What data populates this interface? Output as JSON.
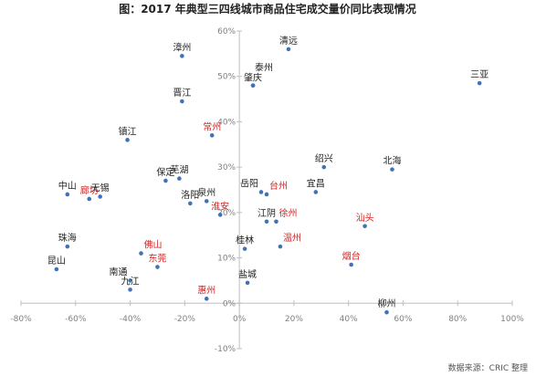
{
  "chart_data": {
    "type": "scatter",
    "title": "图：2017 年典型三四线城市商品住宅成交量价同比表现情况",
    "source": "数据来源：CRIC 整理",
    "xlabel": "",
    "ylabel": "",
    "xlim": [
      -80,
      100
    ],
    "ylim": [
      -10,
      60
    ],
    "x_ticks": [
      -80,
      -60,
      -40,
      -20,
      0,
      20,
      40,
      60,
      80,
      100
    ],
    "y_ticks": [
      -10,
      0,
      10,
      20,
      30,
      40,
      50,
      60
    ],
    "x_tick_labels": [
      "-80%",
      "-60%",
      "-40%",
      "-20%",
      "0%",
      "20%",
      "40%",
      "60%",
      "80%",
      "100%"
    ],
    "y_tick_labels": [
      "-10%",
      "0%",
      "10%",
      "20%",
      "30%",
      "40%",
      "50%",
      "60%"
    ],
    "grid": false,
    "colors": {
      "point": "#3f73b5",
      "label_default": "#222222",
      "label_highlight": "#d42424",
      "axis": "#bfbfbf",
      "tick_text": "#808080"
    },
    "points": [
      {
        "name": "漳州",
        "x": -21,
        "y": 54.5,
        "highlight": false,
        "label_pos": "above"
      },
      {
        "name": "清远",
        "x": 18,
        "y": 56,
        "highlight": false,
        "label_pos": "above"
      },
      {
        "name": "泰州",
        "x": 5,
        "y": 48,
        "highlight": false,
        "label_pos": "above-right"
      },
      {
        "name": "肇庆",
        "x": 5,
        "y": 48,
        "highlight": false,
        "label_pos": "above"
      },
      {
        "name": "三亚",
        "x": 88,
        "y": 48.5,
        "highlight": false,
        "label_pos": "above"
      },
      {
        "name": "晋江",
        "x": -21,
        "y": 44.5,
        "highlight": false,
        "label_pos": "above"
      },
      {
        "name": "常州",
        "x": -10,
        "y": 37,
        "highlight": true,
        "label_pos": "above"
      },
      {
        "name": "镇江",
        "x": -41,
        "y": 36,
        "highlight": false,
        "label_pos": "above"
      },
      {
        "name": "绍兴",
        "x": 31,
        "y": 30,
        "highlight": false,
        "label_pos": "above"
      },
      {
        "name": "北海",
        "x": 56,
        "y": 29.5,
        "highlight": false,
        "label_pos": "above"
      },
      {
        "name": "保定",
        "x": -27,
        "y": 27,
        "highlight": false,
        "label_pos": "above"
      },
      {
        "name": "芜湖",
        "x": -22,
        "y": 27.5,
        "highlight": false,
        "label_pos": "above"
      },
      {
        "name": "岳阳",
        "x": 8,
        "y": 24.5,
        "highlight": false,
        "label_pos": "above-left"
      },
      {
        "name": "台州",
        "x": 10,
        "y": 24,
        "highlight": true,
        "label_pos": "above-right"
      },
      {
        "name": "宜昌",
        "x": 28,
        "y": 24.5,
        "highlight": false,
        "label_pos": "above"
      },
      {
        "name": "中山",
        "x": -63,
        "y": 24,
        "highlight": false,
        "label_pos": "above"
      },
      {
        "name": "廊坊",
        "x": -55,
        "y": 23,
        "highlight": true,
        "label_pos": "above"
      },
      {
        "name": "无锡",
        "x": -51,
        "y": 23.5,
        "highlight": false,
        "label_pos": "above"
      },
      {
        "name": "洛阳",
        "x": -18,
        "y": 22,
        "highlight": false,
        "label_pos": "above"
      },
      {
        "name": "泉州",
        "x": -12,
        "y": 22.5,
        "highlight": false,
        "label_pos": "above"
      },
      {
        "name": "淮安",
        "x": -7,
        "y": 19.5,
        "highlight": true,
        "label_pos": "above"
      },
      {
        "name": "江阴",
        "x": 10,
        "y": 18,
        "highlight": false,
        "label_pos": "above"
      },
      {
        "name": "徐州",
        "x": 13.5,
        "y": 18,
        "highlight": true,
        "label_pos": "above-right"
      },
      {
        "name": "汕头",
        "x": 46,
        "y": 17,
        "highlight": true,
        "label_pos": "above"
      },
      {
        "name": "珠海",
        "x": -63,
        "y": 12.5,
        "highlight": false,
        "label_pos": "above"
      },
      {
        "name": "佛山",
        "x": -36,
        "y": 11,
        "highlight": true,
        "label_pos": "above-right"
      },
      {
        "name": "桂林",
        "x": 2,
        "y": 12,
        "highlight": false,
        "label_pos": "above"
      },
      {
        "name": "温州",
        "x": 15,
        "y": 12.5,
        "highlight": true,
        "label_pos": "above-right"
      },
      {
        "name": "昆山",
        "x": -67,
        "y": 7.5,
        "highlight": false,
        "label_pos": "above"
      },
      {
        "name": "东莞",
        "x": -30,
        "y": 8,
        "highlight": true,
        "label_pos": "above"
      },
      {
        "name": "烟台",
        "x": 41,
        "y": 8.5,
        "highlight": true,
        "label_pos": "above"
      },
      {
        "name": "南通",
        "x": -40,
        "y": 5,
        "highlight": false,
        "label_pos": "above-left"
      },
      {
        "name": "盐城",
        "x": 3,
        "y": 4.5,
        "highlight": false,
        "label_pos": "above"
      },
      {
        "name": "九江",
        "x": -40,
        "y": 3,
        "highlight": false,
        "label_pos": "above"
      },
      {
        "name": "惠州",
        "x": -12,
        "y": 1,
        "highlight": true,
        "label_pos": "above"
      },
      {
        "name": "柳州",
        "x": 54,
        "y": -2,
        "highlight": false,
        "label_pos": "above"
      }
    ]
  }
}
